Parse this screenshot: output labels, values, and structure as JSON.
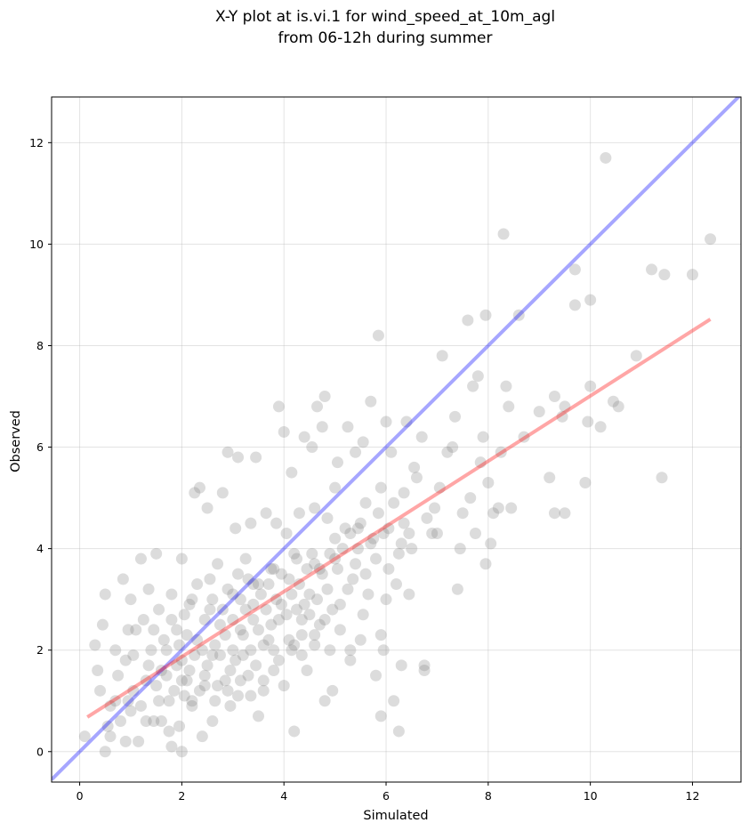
{
  "chart_data": {
    "type": "scatter",
    "title": [
      "X-Y plot at is.vi.1 for wind_speed_at_10m_agl",
      "from 06-12h during summer"
    ],
    "xlabel": "Simulated",
    "ylabel": "Observed",
    "xlim": [
      -0.55,
      12.95
    ],
    "ylim": [
      -0.6,
      12.9
    ],
    "xticks": [
      0,
      2,
      4,
      6,
      8,
      10,
      12
    ],
    "yticks": [
      0,
      2,
      4,
      6,
      8,
      10,
      12
    ],
    "grid": true,
    "colors": {
      "points": "#808080",
      "identity_line": "#0000ff",
      "fit_line": "#ff0000"
    },
    "series": [
      {
        "points": [
          [
            0.1,
            0.3
          ],
          [
            0.3,
            2.1
          ],
          [
            0.35,
            1.6
          ],
          [
            0.4,
            1.2
          ],
          [
            0.45,
            2.5
          ],
          [
            0.5,
            3.1
          ],
          [
            0.5,
            0.0
          ],
          [
            0.55,
            0.5
          ],
          [
            0.6,
            0.3
          ],
          [
            0.7,
            1.0
          ],
          [
            0.7,
            2.0
          ],
          [
            0.8,
            0.6
          ],
          [
            0.85,
            3.4
          ],
          [
            0.9,
            0.2
          ],
          [
            0.9,
            1.8
          ],
          [
            0.95,
            2.4
          ],
          [
            1.0,
            0.8
          ],
          [
            1.0,
            3.0
          ],
          [
            1.05,
            1.2
          ],
          [
            1.1,
            2.4
          ],
          [
            1.15,
            0.2
          ],
          [
            1.2,
            3.8
          ],
          [
            1.3,
            0.6
          ],
          [
            1.3,
            1.4
          ],
          [
            1.35,
            3.2
          ],
          [
            1.4,
            2.0
          ],
          [
            1.45,
            0.6
          ],
          [
            1.5,
            3.9
          ],
          [
            1.55,
            2.8
          ],
          [
            1.6,
            1.6
          ],
          [
            1.6,
            0.6
          ],
          [
            1.7,
            2.0
          ],
          [
            1.75,
            0.4
          ],
          [
            1.8,
            3.1
          ],
          [
            1.8,
            0.1
          ],
          [
            1.85,
            1.2
          ],
          [
            1.9,
            2.4
          ],
          [
            1.95,
            0.5
          ],
          [
            2.0,
            1.8
          ],
          [
            2.0,
            3.8
          ],
          [
            2.0,
            0.0
          ],
          [
            2.05,
            2.7
          ],
          [
            2.1,
            1.4
          ],
          [
            2.2,
            3.0
          ],
          [
            2.2,
            0.9
          ],
          [
            2.25,
            5.1
          ],
          [
            2.3,
            2.2
          ],
          [
            2.35,
            5.2
          ],
          [
            2.4,
            0.3
          ],
          [
            2.45,
            1.5
          ],
          [
            2.5,
            4.8
          ],
          [
            2.55,
            2.8
          ],
          [
            2.6,
            1.9
          ],
          [
            2.6,
            0.6
          ],
          [
            2.7,
            3.7
          ],
          [
            2.75,
            2.5
          ],
          [
            2.8,
            5.1
          ],
          [
            2.85,
            1.4
          ],
          [
            2.9,
            5.9
          ],
          [
            2.9,
            3.2
          ],
          [
            2.95,
            0.9
          ],
          [
            3.0,
            2.0
          ],
          [
            3.05,
            4.4
          ],
          [
            3.1,
            5.8
          ],
          [
            3.1,
            1.1
          ],
          [
            3.15,
            3.0
          ],
          [
            3.2,
            2.3
          ],
          [
            3.25,
            3.8
          ],
          [
            3.3,
            1.5
          ],
          [
            3.35,
            4.5
          ],
          [
            3.4,
            2.6
          ],
          [
            3.45,
            5.8
          ],
          [
            3.5,
            0.7
          ],
          [
            3.5,
            3.3
          ],
          [
            3.6,
            1.2
          ],
          [
            3.65,
            4.7
          ],
          [
            3.7,
            2.2
          ],
          [
            3.75,
            3.6
          ],
          [
            3.8,
            1.6
          ],
          [
            3.85,
            4.5
          ],
          [
            3.9,
            6.8
          ],
          [
            3.95,
            2.9
          ],
          [
            4.0,
            6.3
          ],
          [
            4.0,
            1.3
          ],
          [
            4.05,
            4.3
          ],
          [
            4.1,
            3.4
          ],
          [
            4.15,
            5.5
          ],
          [
            4.2,
            0.4
          ],
          [
            4.2,
            2.1
          ],
          [
            4.25,
            3.8
          ],
          [
            4.3,
            4.7
          ],
          [
            4.35,
            2.6
          ],
          [
            4.4,
            6.2
          ],
          [
            4.45,
            1.6
          ],
          [
            4.5,
            3.1
          ],
          [
            4.55,
            6.0
          ],
          [
            4.6,
            4.8
          ],
          [
            4.6,
            2.3
          ],
          [
            4.65,
            6.8
          ],
          [
            4.7,
            3.6
          ],
          [
            4.75,
            6.4
          ],
          [
            4.8,
            1.0
          ],
          [
            4.8,
            7.0
          ],
          [
            4.85,
            4.6
          ],
          [
            4.9,
            2.0
          ],
          [
            4.95,
            1.2
          ],
          [
            5.0,
            3.8
          ],
          [
            5.0,
            5.2
          ],
          [
            5.05,
            5.7
          ],
          [
            5.1,
            2.9
          ],
          [
            5.2,
            4.4
          ],
          [
            5.25,
            6.4
          ],
          [
            5.3,
            1.8
          ],
          [
            5.35,
            3.4
          ],
          [
            5.4,
            5.9
          ],
          [
            5.45,
            4.0
          ],
          [
            5.5,
            2.2
          ],
          [
            5.55,
            6.1
          ],
          [
            5.6,
            4.9
          ],
          [
            5.65,
            3.1
          ],
          [
            5.7,
            6.9
          ],
          [
            5.75,
            4.2
          ],
          [
            5.8,
            1.5
          ],
          [
            5.85,
            8.2
          ],
          [
            5.9,
            5.2
          ],
          [
            5.9,
            0.7
          ],
          [
            5.95,
            2.0
          ],
          [
            6.0,
            3.0
          ],
          [
            6.0,
            6.5
          ],
          [
            6.05,
            4.4
          ],
          [
            6.1,
            5.9
          ],
          [
            6.15,
            1.0
          ],
          [
            6.2,
            3.3
          ],
          [
            6.25,
            0.4
          ],
          [
            6.3,
            4.1
          ],
          [
            6.3,
            1.7
          ],
          [
            6.35,
            5.1
          ],
          [
            6.4,
            6.5
          ],
          [
            6.45,
            3.1
          ],
          [
            6.5,
            4.0
          ],
          [
            6.55,
            5.6
          ],
          [
            6.6,
            5.4
          ],
          [
            6.7,
            6.2
          ],
          [
            6.75,
            1.7
          ],
          [
            6.75,
            1.6
          ],
          [
            6.8,
            4.6
          ],
          [
            6.9,
            4.3
          ],
          [
            6.95,
            4.8
          ],
          [
            7.0,
            4.3
          ],
          [
            7.05,
            5.2
          ],
          [
            7.1,
            7.8
          ],
          [
            7.2,
            5.9
          ],
          [
            7.3,
            6.0
          ],
          [
            7.35,
            6.6
          ],
          [
            7.4,
            3.2
          ],
          [
            7.45,
            4.0
          ],
          [
            7.5,
            4.7
          ],
          [
            7.6,
            8.5
          ],
          [
            7.65,
            5.0
          ],
          [
            7.7,
            7.2
          ],
          [
            7.75,
            4.3
          ],
          [
            7.8,
            7.4
          ],
          [
            7.85,
            5.7
          ],
          [
            7.9,
            6.2
          ],
          [
            7.95,
            3.7
          ],
          [
            7.95,
            8.6
          ],
          [
            8.0,
            5.3
          ],
          [
            8.05,
            4.1
          ],
          [
            8.1,
            4.7
          ],
          [
            8.2,
            4.8
          ],
          [
            8.25,
            5.9
          ],
          [
            8.3,
            10.2
          ],
          [
            8.35,
            7.2
          ],
          [
            8.4,
            6.8
          ],
          [
            8.45,
            4.8
          ],
          [
            8.6,
            8.6
          ],
          [
            8.7,
            6.2
          ],
          [
            9.0,
            6.7
          ],
          [
            9.2,
            5.4
          ],
          [
            9.3,
            7.0
          ],
          [
            9.3,
            4.7
          ],
          [
            9.45,
            6.6
          ],
          [
            9.5,
            6.8
          ],
          [
            9.5,
            4.7
          ],
          [
            9.7,
            8.8
          ],
          [
            9.7,
            9.5
          ],
          [
            9.9,
            5.3
          ],
          [
            9.95,
            6.5
          ],
          [
            10.0,
            8.9
          ],
          [
            10.0,
            7.2
          ],
          [
            10.2,
            6.4
          ],
          [
            10.3,
            11.7
          ],
          [
            10.45,
            6.9
          ],
          [
            10.55,
            6.8
          ],
          [
            10.9,
            7.8
          ],
          [
            11.2,
            9.5
          ],
          [
            11.4,
            5.4
          ],
          [
            11.45,
            9.4
          ],
          [
            12.0,
            9.4
          ],
          [
            12.35,
            10.1
          ],
          [
            0.6,
            0.9
          ],
          [
            0.75,
            1.5
          ],
          [
            0.95,
            1.0
          ],
          [
            1.05,
            1.9
          ],
          [
            1.25,
            2.6
          ],
          [
            1.35,
            1.7
          ],
          [
            1.45,
            2.4
          ],
          [
            1.55,
            1.0
          ],
          [
            1.65,
            2.2
          ],
          [
            1.7,
            1.5
          ],
          [
            1.8,
            2.6
          ],
          [
            1.9,
            1.7
          ],
          [
            1.95,
            2.1
          ],
          [
            2.05,
            1.1
          ],
          [
            2.1,
            2.3
          ],
          [
            2.15,
            1.6
          ],
          [
            2.25,
            1.9
          ],
          [
            2.3,
            3.3
          ],
          [
            2.35,
            1.2
          ],
          [
            2.4,
            2.0
          ],
          [
            2.45,
            2.6
          ],
          [
            2.5,
            1.7
          ],
          [
            2.55,
            3.4
          ],
          [
            2.65,
            2.1
          ],
          [
            2.7,
            1.3
          ],
          [
            2.75,
            1.9
          ],
          [
            2.8,
            2.8
          ],
          [
            2.85,
            2.3
          ],
          [
            2.95,
            1.6
          ],
          [
            3.0,
            2.6
          ],
          [
            3.05,
            1.8
          ],
          [
            3.1,
            3.5
          ],
          [
            3.15,
            2.4
          ],
          [
            3.2,
            1.9
          ],
          [
            3.25,
            2.8
          ],
          [
            3.3,
            3.4
          ],
          [
            3.35,
            2.0
          ],
          [
            3.4,
            2.9
          ],
          [
            3.45,
            1.7
          ],
          [
            3.5,
            2.4
          ],
          [
            3.55,
            3.1
          ],
          [
            3.6,
            2.1
          ],
          [
            3.65,
            2.8
          ],
          [
            3.7,
            3.3
          ],
          [
            3.75,
            2.5
          ],
          [
            3.8,
            2.0
          ],
          [
            3.85,
            3.0
          ],
          [
            3.9,
            2.6
          ],
          [
            3.95,
            3.5
          ],
          [
            4.05,
            2.7
          ],
          [
            4.1,
            2.2
          ],
          [
            4.15,
            3.1
          ],
          [
            4.25,
            2.8
          ],
          [
            4.3,
            3.3
          ],
          [
            4.35,
            1.9
          ],
          [
            4.4,
            2.9
          ],
          [
            4.45,
            3.6
          ],
          [
            4.5,
            2.7
          ],
          [
            4.55,
            3.9
          ],
          [
            4.65,
            3.0
          ],
          [
            4.7,
            2.5
          ],
          [
            4.75,
            3.5
          ],
          [
            4.85,
            3.2
          ],
          [
            4.9,
            3.9
          ],
          [
            4.95,
            2.8
          ],
          [
            5.05,
            3.6
          ],
          [
            5.15,
            4.0
          ],
          [
            5.25,
            3.2
          ],
          [
            5.3,
            4.3
          ],
          [
            5.4,
            3.7
          ],
          [
            5.5,
            4.5
          ],
          [
            5.6,
            3.5
          ],
          [
            5.7,
            4.1
          ],
          [
            5.8,
            3.8
          ],
          [
            5.85,
            4.7
          ],
          [
            5.95,
            4.3
          ],
          [
            6.05,
            3.6
          ],
          [
            6.15,
            4.9
          ],
          [
            6.25,
            3.9
          ],
          [
            6.35,
            4.5
          ],
          [
            2.15,
            2.9
          ],
          [
            2.6,
            3.0
          ],
          [
            3.0,
            3.1
          ],
          [
            3.4,
            3.3
          ],
          [
            3.8,
            3.6
          ],
          [
            4.2,
            3.9
          ],
          [
            4.6,
            3.7
          ],
          [
            5.0,
            4.2
          ],
          [
            5.45,
            4.4
          ],
          [
            6.45,
            4.3
          ],
          [
            1.2,
            0.9
          ],
          [
            1.5,
            1.3
          ],
          [
            1.75,
            1.0
          ],
          [
            2.0,
            1.4
          ],
          [
            2.2,
            1.0
          ],
          [
            2.45,
            1.3
          ],
          [
            2.65,
            1.0
          ],
          [
            2.9,
            1.2
          ],
          [
            3.15,
            1.4
          ],
          [
            3.35,
            1.1
          ],
          [
            3.6,
            1.4
          ],
          [
            3.9,
            1.8
          ],
          [
            4.15,
            2.0
          ],
          [
            4.35,
            2.3
          ],
          [
            4.6,
            2.1
          ],
          [
            4.8,
            2.6
          ],
          [
            5.1,
            2.4
          ],
          [
            5.3,
            2.0
          ],
          [
            5.55,
            2.7
          ],
          [
            5.9,
            2.3
          ]
        ]
      }
    ],
    "identity_line": [
      [
        -0.55,
        -0.55
      ],
      [
        12.95,
        12.95
      ]
    ],
    "fit_line": [
      [
        0.15,
        0.68
      ],
      [
        12.35,
        8.52
      ]
    ]
  }
}
